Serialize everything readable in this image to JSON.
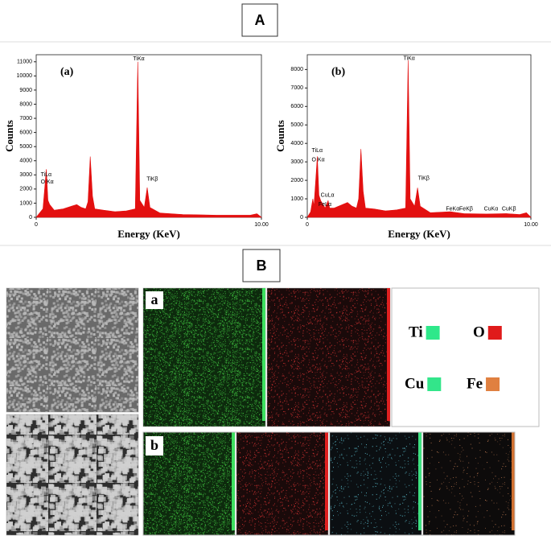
{
  "sections": {
    "A": "A",
    "B": "B"
  },
  "chart_data": [
    {
      "type": "area",
      "panel_label": "(a)",
      "x_label": "Energy (KeV)",
      "y_label": "Counts",
      "color": "#e31010",
      "x": [
        0,
        0.15,
        0.3,
        0.45,
        0.52,
        0.6,
        0.8,
        1.2,
        1.6,
        1.8,
        2.0,
        2.2,
        2.3,
        2.4,
        2.5,
        2.6,
        3.0,
        3.5,
        4.0,
        4.4,
        4.51,
        4.6,
        4.8,
        4.93,
        5.05,
        5.5,
        6.5,
        8,
        9.5,
        9.8,
        10
      ],
      "values": [
        0,
        300,
        600,
        3400,
        1200,
        900,
        500,
        600,
        800,
        900,
        700,
        600,
        1100,
        4300,
        1500,
        600,
        500,
        400,
        450,
        600,
        11000,
        1200,
        700,
        2100,
        700,
        300,
        200,
        150,
        150,
        250,
        0
      ],
      "xlim": [
        0,
        10
      ],
      "xticks": [
        0,
        {
          "value": 10,
          "label": "10.00"
        }
      ],
      "ylim": [
        0,
        11500
      ],
      "yticks": [
        0,
        1000,
        2000,
        3000,
        4000,
        5000,
        6000,
        7000,
        8000,
        9000,
        10000,
        11000
      ],
      "annotations": [
        {
          "text": "TiLα",
          "x": 0.2,
          "y": 3000
        },
        {
          "text": "O Kα",
          "x": 0.2,
          "y": 2500
        },
        {
          "text": "TiKα",
          "x": 4.3,
          "y": 11200
        },
        {
          "text": "TiKβ",
          "x": 4.9,
          "y": 2700
        }
      ]
    },
    {
      "type": "area",
      "panel_label": "(b)",
      "x_label": "Energy (KeV)",
      "y_label": "Counts",
      "color": "#e31010",
      "x": [
        0,
        0.15,
        0.25,
        0.3,
        0.45,
        0.52,
        0.6,
        0.8,
        0.93,
        1.0,
        1.2,
        1.6,
        1.8,
        2.0,
        2.2,
        2.3,
        2.4,
        2.5,
        2.6,
        3.0,
        3.5,
        4.0,
        4.4,
        4.51,
        4.6,
        4.8,
        4.93,
        5.05,
        5.5,
        6.4,
        7.0,
        8.0,
        8.9,
        9.5,
        9.8,
        10
      ],
      "values": [
        0,
        300,
        1000,
        600,
        3300,
        1200,
        900,
        500,
        900,
        500,
        500,
        700,
        800,
        600,
        500,
        1000,
        3700,
        1400,
        500,
        450,
        350,
        400,
        500,
        8500,
        1000,
        600,
        1600,
        600,
        250,
        300,
        200,
        180,
        200,
        150,
        250,
        0
      ],
      "xlim": [
        0,
        10
      ],
      "xticks": [
        0,
        {
          "value": 10,
          "label": "10.00"
        }
      ],
      "ylim": [
        0,
        8800
      ],
      "yticks": [
        0,
        1000,
        2000,
        3000,
        4000,
        5000,
        6000,
        7000,
        8000
      ],
      "annotations": [
        {
          "text": "TiLα",
          "x": 0.2,
          "y": 3600
        },
        {
          "text": "O Kα",
          "x": 0.2,
          "y": 3100
        },
        {
          "text": "TiKα",
          "x": 4.3,
          "y": 8600
        },
        {
          "text": "TiKβ",
          "x": 4.95,
          "y": 2100
        },
        {
          "text": "CuLα",
          "x": 0.6,
          "y": 1200
        },
        {
          "text": "FeLα",
          "x": 0.5,
          "y": 700
        },
        {
          "text": "FeKα",
          "x": 6.2,
          "y": 450
        },
        {
          "text": "FeKβ",
          "x": 6.8,
          "y": 450
        },
        {
          "text": "CuKα",
          "x": 7.9,
          "y": 450
        },
        {
          "text": "CuKβ",
          "x": 8.7,
          "y": 450
        }
      ]
    }
  ],
  "maps": {
    "row_a": "a",
    "row_b": "b"
  },
  "legend": [
    {
      "name": "Ti",
      "color": "#2ee88a"
    },
    {
      "name": "O",
      "color": "#e01b1b"
    },
    {
      "name": "Cu",
      "color": "#33e58a"
    },
    {
      "name": "Fe",
      "color": "#e08040"
    }
  ]
}
